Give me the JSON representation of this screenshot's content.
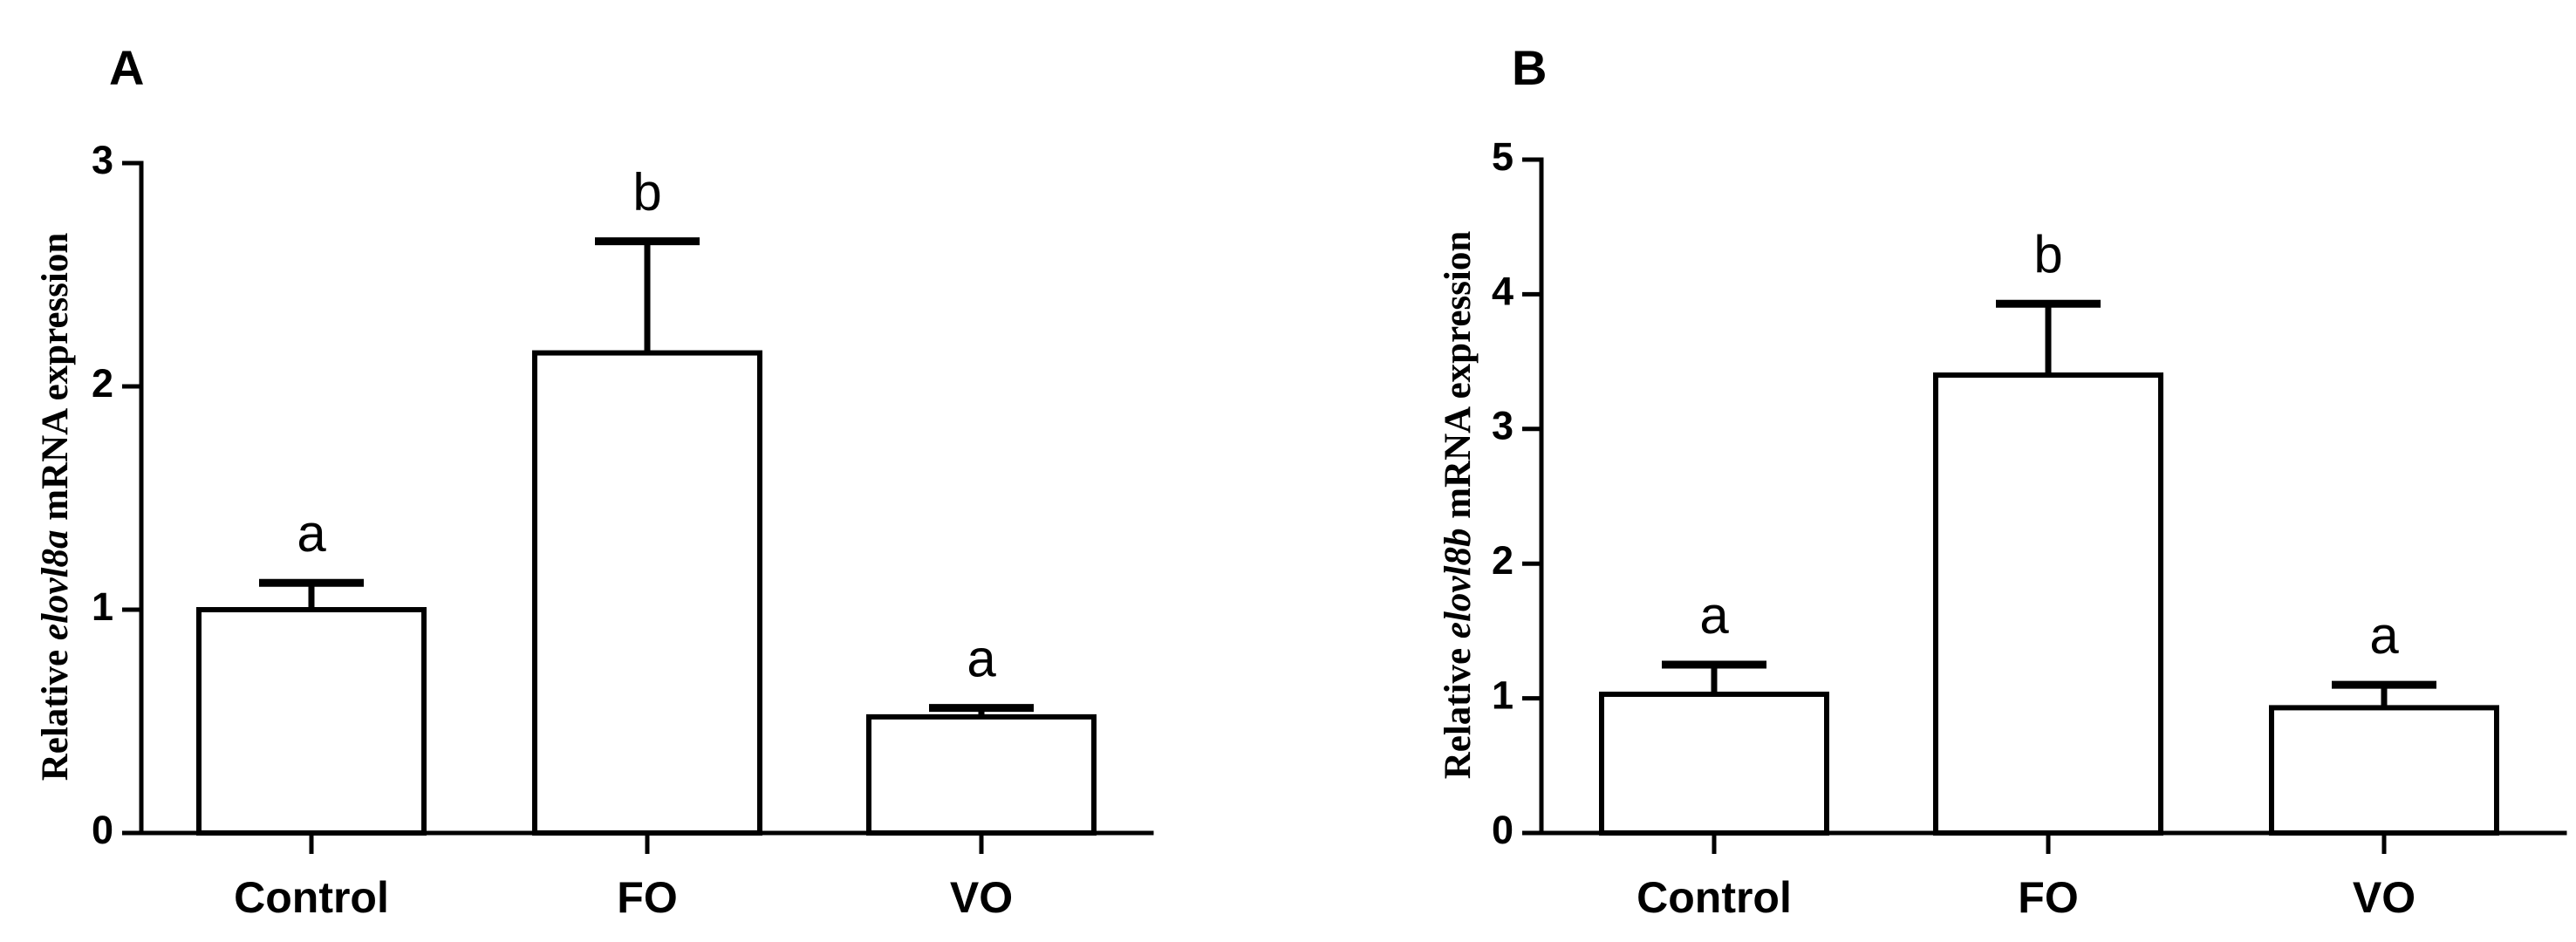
{
  "chart_data": [
    {
      "type": "bar",
      "panel": "A",
      "categories": [
        "Control",
        "FO",
        "VO"
      ],
      "values": [
        1.0,
        2.15,
        0.52
      ],
      "errors": [
        0.12,
        0.5,
        0.04
      ],
      "significance": [
        "a",
        "b",
        "a"
      ],
      "ylabel_prefix": "Relative ",
      "ylabel_gene": "elovl8a",
      "ylabel_suffix": " mRNA expression",
      "xlabel": "",
      "ylim": [
        0,
        3
      ],
      "yticks": [
        0,
        1,
        2,
        3
      ],
      "ytick_labels": [
        "0",
        "1",
        "2",
        "3"
      ]
    },
    {
      "type": "bar",
      "panel": "B",
      "categories": [
        "Control",
        "FO",
        "VO"
      ],
      "values": [
        1.03,
        3.4,
        0.93
      ],
      "errors": [
        0.22,
        0.53,
        0.17
      ],
      "significance": [
        "a",
        "b",
        "a"
      ],
      "ylabel_prefix": "Relative ",
      "ylabel_gene": "elovl8b",
      "ylabel_suffix": " mRNA expression",
      "xlabel": "",
      "ylim": [
        0,
        5
      ],
      "yticks": [
        0,
        1,
        2,
        3,
        4,
        5
      ],
      "ytick_labels": [
        "0",
        "1",
        "2",
        "3",
        "4",
        "5"
      ]
    }
  ],
  "colors": {
    "bar_fill": "#ffffff",
    "stroke": "#000000"
  }
}
